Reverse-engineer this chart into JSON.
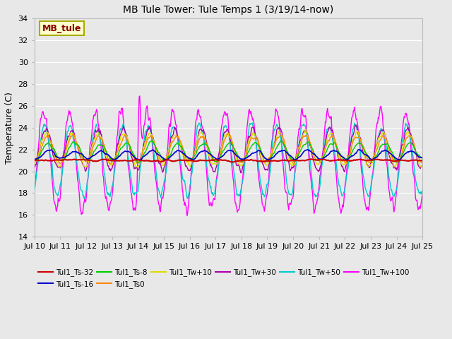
{
  "title": "MB Tule Tower: Tule Temps 1 (3/19/14-now)",
  "ylabel": "Temperature (C)",
  "xlabel": "",
  "ylim": [
    14,
    34
  ],
  "yticks": [
    14,
    16,
    18,
    20,
    22,
    24,
    26,
    28,
    30,
    32,
    34
  ],
  "xlim": [
    0,
    15
  ],
  "xtick_labels": [
    "Jul 10",
    "Jul 11",
    "Jul 12",
    "Jul 13",
    "Jul 14",
    "Jul 15",
    "Jul 16",
    "Jul 17",
    "Jul 18",
    "Jul 19",
    "Jul 20",
    "Jul 21",
    "Jul 22",
    "Jul 23",
    "Jul 24",
    "Jul 25"
  ],
  "xtick_positions": [
    0,
    1,
    2,
    3,
    4,
    5,
    6,
    7,
    8,
    9,
    10,
    11,
    12,
    13,
    14,
    15
  ],
  "fig_bg": "#e8e8e8",
  "plot_bg": "#e8e8e8",
  "grid_color": "#ffffff",
  "series_colors": {
    "Tul1_Ts-32": "#cc0000",
    "Tul1_Ts-16": "#0000cc",
    "Tul1_Ts-8": "#00cc00",
    "Tul1_Ts0": "#ff8800",
    "Tul1_Tw+10": "#dddd00",
    "Tul1_Tw+30": "#aa00aa",
    "Tul1_Tw+50": "#00cccc",
    "Tul1_Tw+100": "#ff00ff"
  },
  "legend_order": [
    "Tul1_Ts-32",
    "Tul1_Ts-16",
    "Tul1_Ts-8",
    "Tul1_Ts0",
    "Tul1_Tw+10",
    "Tul1_Tw+30",
    "Tul1_Tw+50",
    "Tul1_Tw+100"
  ],
  "mb_tule_box": {
    "text": "MB_tule",
    "text_color": "#880000",
    "bg_color": "#ffffcc",
    "edge_color": "#aaaa00"
  }
}
